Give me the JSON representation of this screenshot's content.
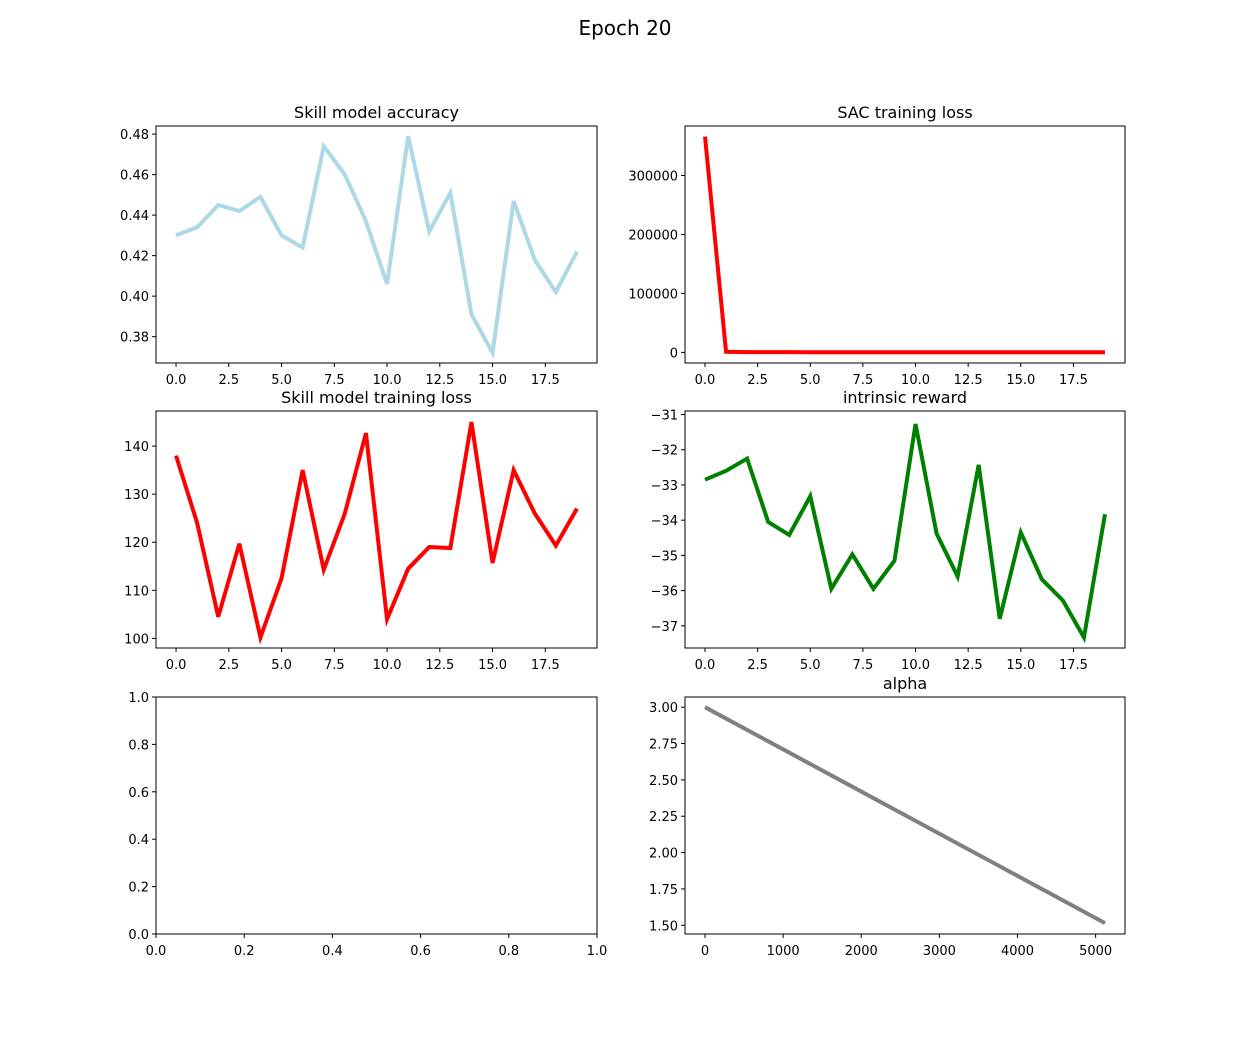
{
  "figure": {
    "title": "Epoch 20"
  },
  "chart_data": [
    {
      "type": "line",
      "title": "Skill model accuracy",
      "color": "#add8e6",
      "x": [
        0,
        1,
        2,
        3,
        4,
        5,
        6,
        7,
        8,
        9,
        10,
        11,
        12,
        13,
        14,
        15,
        16,
        17,
        18,
        19
      ],
      "y": [
        0.43,
        0.434,
        0.445,
        0.442,
        0.449,
        0.43,
        0.424,
        0.474,
        0.46,
        0.437,
        0.406,
        0.479,
        0.432,
        0.451,
        0.391,
        0.372,
        0.447,
        0.418,
        0.402,
        0.422
      ],
      "xlim": [
        -0.95,
        19.95
      ],
      "ylim": [
        0.367,
        0.484
      ],
      "xticks": [
        0,
        2.5,
        5,
        7.5,
        10,
        12.5,
        15,
        17.5
      ],
      "xtick_labels": [
        "0.0",
        "2.5",
        "5.0",
        "7.5",
        "10.0",
        "12.5",
        "15.0",
        "17.5"
      ],
      "yticks": [
        0.38,
        0.4,
        0.42,
        0.44,
        0.46,
        0.48
      ],
      "ytick_labels": [
        "0.38",
        "0.40",
        "0.42",
        "0.44",
        "0.46",
        "0.48"
      ]
    },
    {
      "type": "line",
      "title": "SAC training loss",
      "color": "#ff0000",
      "x": [
        0,
        1,
        2,
        3,
        4,
        5,
        6,
        7,
        8,
        9,
        10,
        11,
        12,
        13,
        14,
        15,
        16,
        17,
        18,
        19
      ],
      "y": [
        366000,
        1000,
        500,
        400,
        350,
        300,
        280,
        260,
        250,
        240,
        230,
        220,
        210,
        200,
        190,
        180,
        170,
        160,
        150,
        140
      ],
      "xlim": [
        -0.95,
        19.95
      ],
      "ylim": [
        -18000,
        384000
      ],
      "xticks": [
        0,
        2.5,
        5,
        7.5,
        10,
        12.5,
        15,
        17.5
      ],
      "xtick_labels": [
        "0.0",
        "2.5",
        "5.0",
        "7.5",
        "10.0",
        "12.5",
        "15.0",
        "17.5"
      ],
      "yticks": [
        0,
        100000,
        200000,
        300000
      ],
      "ytick_labels": [
        "0",
        "100000",
        "200000",
        "300000"
      ]
    },
    {
      "type": "line",
      "title": "Skill model training loss",
      "color": "#ff0000",
      "x": [
        0,
        1,
        2,
        3,
        4,
        5,
        6,
        7,
        8,
        9,
        10,
        11,
        12,
        13,
        14,
        15,
        16,
        17,
        18,
        19
      ],
      "y": [
        138,
        124,
        104.5,
        119.7,
        100.2,
        112.5,
        135,
        114.3,
        126,
        142.7,
        104,
        114.5,
        119,
        118.8,
        145,
        115.7,
        135,
        126,
        119.3,
        127
      ],
      "xlim": [
        -0.95,
        19.95
      ],
      "ylim": [
        98,
        147.3
      ],
      "xticks": [
        0,
        2.5,
        5,
        7.5,
        10,
        12.5,
        15,
        17.5
      ],
      "xtick_labels": [
        "0.0",
        "2.5",
        "5.0",
        "7.5",
        "10.0",
        "12.5",
        "15.0",
        "17.5"
      ],
      "yticks": [
        100,
        110,
        120,
        130,
        140
      ],
      "ytick_labels": [
        "100",
        "110",
        "120",
        "130",
        "140"
      ]
    },
    {
      "type": "line",
      "title": "intrinsic reward",
      "color": "#008000",
      "x": [
        0,
        1,
        2,
        3,
        4,
        5,
        6,
        7,
        8,
        9,
        10,
        11,
        12,
        13,
        14,
        15,
        16,
        17,
        18,
        19
      ],
      "y": [
        -32.85,
        -32.6,
        -32.25,
        -34.05,
        -34.42,
        -33.32,
        -35.95,
        -34.97,
        -35.95,
        -35.15,
        -31.27,
        -34.38,
        -35.6,
        -32.43,
        -36.8,
        -34.35,
        -35.68,
        -36.28,
        -37.33,
        -33.83
      ],
      "xlim": [
        -0.95,
        19.95
      ],
      "ylim": [
        -37.63,
        -30.9
      ],
      "xticks": [
        0,
        2.5,
        5,
        7.5,
        10,
        12.5,
        15,
        17.5
      ],
      "xtick_labels": [
        "0.0",
        "2.5",
        "5.0",
        "7.5",
        "10.0",
        "12.5",
        "15.0",
        "17.5"
      ],
      "yticks": [
        -37,
        -36,
        -35,
        -34,
        -33,
        -32,
        -31
      ],
      "ytick_labels": [
        "−37",
        "−36",
        "−35",
        "−34",
        "−33",
        "−32",
        "−31"
      ]
    },
    {
      "type": "line",
      "title": "",
      "color": "#000000",
      "x": [],
      "y": [],
      "xlim": [
        0,
        1
      ],
      "ylim": [
        0,
        1
      ],
      "xticks": [
        0,
        0.2,
        0.4,
        0.6,
        0.8,
        1.0
      ],
      "xtick_labels": [
        "0.0",
        "0.2",
        "0.4",
        "0.6",
        "0.8",
        "1.0"
      ],
      "yticks": [
        0,
        0.2,
        0.4,
        0.6,
        0.8,
        1.0
      ],
      "ytick_labels": [
        "0.0",
        "0.2",
        "0.4",
        "0.6",
        "0.8",
        "1.0"
      ]
    },
    {
      "type": "line",
      "title": "alpha",
      "color": "#808080",
      "x": [
        0,
        5120
      ],
      "y": [
        3.0,
        1.515
      ],
      "xlim": [
        -256,
        5376
      ],
      "ylim": [
        1.44,
        3.07
      ],
      "xticks": [
        0,
        1000,
        2000,
        3000,
        4000,
        5000
      ],
      "xtick_labels": [
        "0",
        "1000",
        "2000",
        "3000",
        "4000",
        "5000"
      ],
      "yticks": [
        1.5,
        1.75,
        2.0,
        2.25,
        2.5,
        2.75,
        3.0
      ],
      "ytick_labels": [
        "1.50",
        "1.75",
        "2.00",
        "2.25",
        "2.50",
        "2.75",
        "3.00"
      ]
    }
  ]
}
